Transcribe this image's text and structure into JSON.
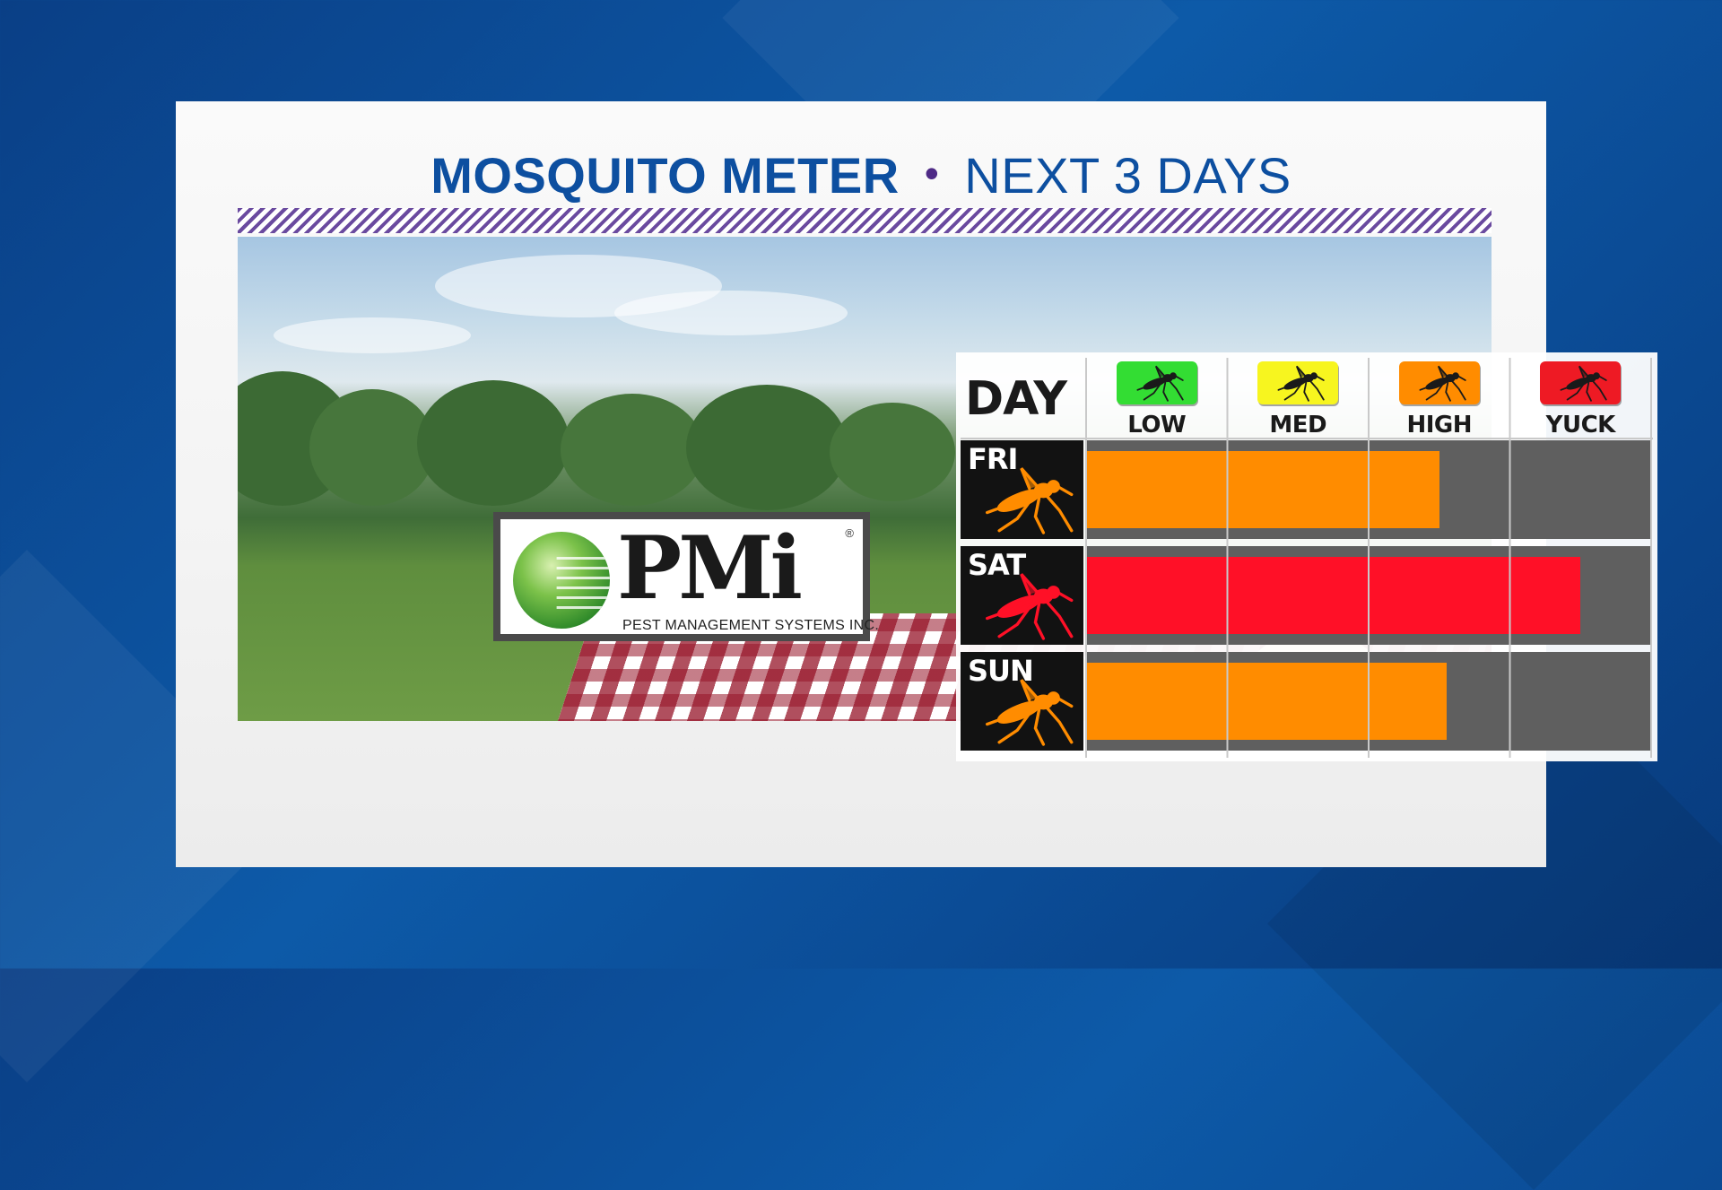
{
  "title": {
    "main": "MOSQUITO METER",
    "separator": "•",
    "sub": "NEXT 3 DAYS"
  },
  "logo": {
    "mark": "PMi",
    "registered": "®",
    "company": "PEST MANAGEMENT SYSTEMS INC."
  },
  "colors": {
    "title": "#0d4fa0",
    "stripe": "#6a4a9f",
    "low": "#33dd33",
    "med": "#f7f51f",
    "high": "#ff8c00",
    "yuck": "#ee1a24",
    "bar_orange": "#ff8c00",
    "bar_red": "#ff1027"
  },
  "icons": {
    "level": "mosquito-icon",
    "row": "mosquito-icon"
  },
  "chart_data": {
    "type": "bar",
    "orientation": "horizontal",
    "column_header": "DAY",
    "levels": [
      "LOW",
      "MED",
      "HIGH",
      "YUCK"
    ],
    "level_colors": [
      "#33dd33",
      "#f7f51f",
      "#ff8c00",
      "#ee1a24"
    ],
    "categories": [
      "FRI",
      "SAT",
      "SUN"
    ],
    "values": [
      2.5,
      3.5,
      2.55
    ],
    "bar_colors": [
      "#ff8c00",
      "#ff1027",
      "#ff8c00"
    ],
    "xlim": [
      0,
      4
    ],
    "grid": true
  }
}
